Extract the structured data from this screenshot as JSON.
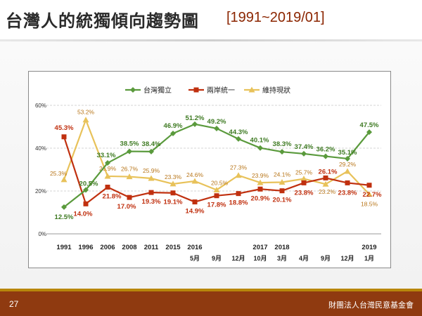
{
  "slide": {
    "title": "台灣人的統獨傾向趨勢圖",
    "range": "[1991~2019/01]",
    "page_number": "27",
    "organization": "財團法人台灣民意基金會"
  },
  "colors": {
    "independence": "#5a9a3c",
    "unification": "#c0300f",
    "status_quo": "#e8c25a",
    "status_quo_label": "#b8761a",
    "independence_label": "#3e7a22",
    "unification_label": "#c0300f"
  },
  "chart_data": {
    "type": "line",
    "title": "",
    "xlabel": "",
    "ylabel": "",
    "ylim": [
      0,
      60
    ],
    "yticks": [
      "0%",
      "20%",
      "40%",
      "60%"
    ],
    "grid": true,
    "legend_position": "top-center",
    "categories": [
      "1991",
      "1996",
      "2006",
      "2008",
      "2011",
      "2015",
      "2016/5月",
      "2016/9月",
      "2016/12月",
      "2017/10月",
      "2018/3月",
      "2018/4月",
      "2018/9月",
      "2018/12月",
      "2019/1月"
    ],
    "x_tick_top": [
      "1991",
      "1996",
      "2006",
      "2008",
      "2011",
      "2015",
      "2016",
      "",
      "",
      "2017",
      "2018",
      "",
      "",
      "",
      "2019"
    ],
    "x_tick_bottom": [
      "",
      "",
      "",
      "",
      "",
      "",
      "5月",
      "9月",
      "12月",
      "10月",
      "3月",
      "4月",
      "9月",
      "12月",
      "1月"
    ],
    "series": [
      {
        "name": "台灣獨立",
        "key": "independence",
        "marker": "diamond",
        "values": [
          12.5,
          20.5,
          33.1,
          38.5,
          38.4,
          46.9,
          51.2,
          49.2,
          44.3,
          40.1,
          38.3,
          37.4,
          36.2,
          35.1,
          47.5
        ],
        "labels": [
          "12.5%",
          "20.5%",
          "33.1%",
          "38.5%",
          "38.4%",
          "46.9%",
          "51.2%",
          "49.2%",
          "44.3%",
          "40.1%",
          "38.3%",
          "37.4%",
          "36.2%",
          "35.1%",
          "47.5%"
        ]
      },
      {
        "name": "兩岸統一",
        "key": "unification",
        "marker": "square",
        "values": [
          45.3,
          14.0,
          21.8,
          17.0,
          19.3,
          19.1,
          14.9,
          17.8,
          18.8,
          20.9,
          20.1,
          23.8,
          26.1,
          23.8,
          22.7
        ],
        "labels": [
          "45.3%",
          "14.0%",
          "21.8%",
          "17.0%",
          "19.3%",
          "19.1%",
          "14.9%",
          "17.8%",
          "18.8%",
          "20.9%",
          "20.1%",
          "23.8%",
          "26.1%",
          "23.8%",
          "22.7%"
        ]
      },
      {
        "name": "維持現狀",
        "key": "status_quo",
        "marker": "triangle",
        "values": [
          25.3,
          53.2,
          26.9,
          26.7,
          25.9,
          23.3,
          24.6,
          20.5,
          27.3,
          23.9,
          24.1,
          25.7,
          23.2,
          29.2,
          18.5
        ],
        "labels": [
          "25.3%",
          "53.2%",
          "26.9%",
          "26.7%",
          "25.9%",
          "23.3%",
          "24.6%",
          "20.5%",
          "27.3%",
          "23.9%",
          "24.1%",
          "25.7%",
          "23.2%",
          "29.2%",
          "18.5%"
        ]
      }
    ]
  }
}
